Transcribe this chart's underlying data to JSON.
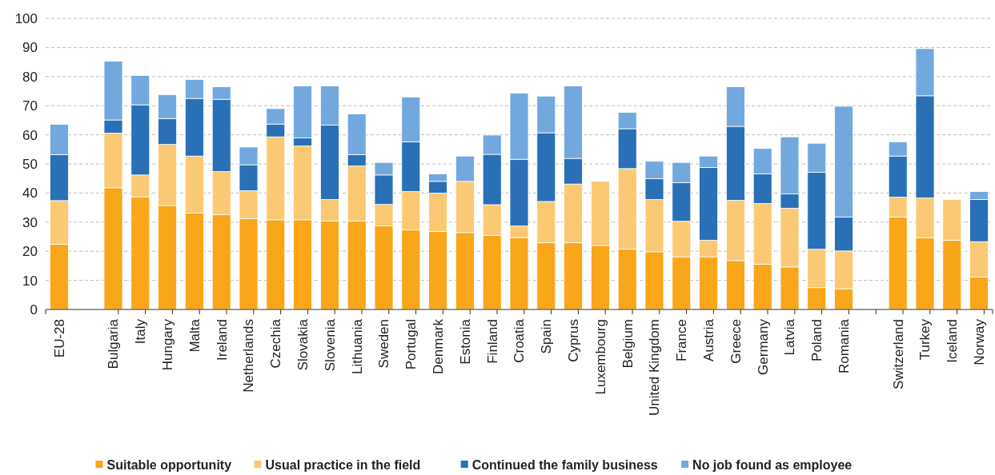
{
  "chart_data": {
    "type": "bar",
    "stacked": true,
    "categories": [
      "EU-28",
      null,
      "Bulgaria",
      "Italy",
      "Hungary",
      "Malta",
      "Ireland",
      "Netherlands",
      "Czechia",
      "Slovakia",
      "Slovenia",
      "Lithuania",
      "Sweden",
      "Portugal",
      "Denmark",
      "Estonia",
      "Finland",
      "Croatia",
      "Spain",
      "Cyprus",
      "Luxembourg",
      "Belgium",
      "United Kingdom",
      "France",
      "Austria",
      "Greece",
      "Germany",
      "Latvia",
      "Poland",
      "Romania",
      null,
      "Switzerland",
      "Turkey",
      "Iceland",
      "Norway"
    ],
    "series": [
      {
        "name": "Suitable opportunity",
        "color": "#f9a61a",
        "values": [
          22.4,
          null,
          41.8,
          38.7,
          35.7,
          33.1,
          32.6,
          31.2,
          30.8,
          30.8,
          30.4,
          30.4,
          28.7,
          27.3,
          26.8,
          26.4,
          25.5,
          24.7,
          22.9,
          22.9,
          22.0,
          20.7,
          19.8,
          18.1,
          18.1,
          16.8,
          15.5,
          14.6,
          7.5,
          7.1,
          null,
          31.7,
          24.6,
          23.8,
          11.1
        ]
      },
      {
        "name": "Usual practice in the field",
        "color": "#fbc974",
        "values": [
          15.0,
          null,
          18.8,
          7.5,
          21.0,
          19.6,
          14.8,
          9.6,
          28.5,
          25.4,
          7.4,
          18.9,
          7.4,
          13.2,
          13.2,
          17.6,
          10.5,
          4.0,
          14.2,
          20.2,
          22.0,
          27.7,
          18.0,
          12.2,
          5.7,
          20.7,
          20.9,
          20.2,
          13.2,
          13.0,
          null,
          6.9,
          13.7,
          14.0,
          12.2
        ]
      },
      {
        "name": "Continued the family business",
        "color": "#2970b6",
        "values": [
          15.8,
          null,
          4.5,
          24.1,
          8.9,
          19.8,
          24.8,
          8.9,
          4.4,
          2.7,
          25.5,
          3.9,
          10.1,
          17.1,
          4.0,
          0,
          17.3,
          22.9,
          23.6,
          8.8,
          0,
          13.7,
          7.1,
          13.3,
          25.0,
          25.4,
          10.2,
          4.9,
          26.4,
          11.6,
          null,
          14.1,
          35.1,
          0,
          14.5
        ]
      },
      {
        "name": "No job found as employee",
        "color": "#73a8df",
        "values": [
          10.4,
          null,
          20.2,
          10.1,
          8.2,
          6.5,
          4.3,
          6.1,
          5.3,
          17.9,
          13.5,
          14.0,
          4.3,
          15.4,
          2.6,
          8.7,
          6.6,
          22.7,
          12.6,
          24.9,
          0,
          5.6,
          6.0,
          6.9,
          3.9,
          13.6,
          8.7,
          19.6,
          10.0,
          38.1,
          null,
          4.9,
          16.2,
          0,
          2.7
        ]
      }
    ],
    "ylim": [
      0,
      100
    ],
    "yticks": [
      0,
      10,
      20,
      30,
      40,
      50,
      60,
      70,
      80,
      90,
      100
    ],
    "grid": "y",
    "legend": "bottom"
  }
}
